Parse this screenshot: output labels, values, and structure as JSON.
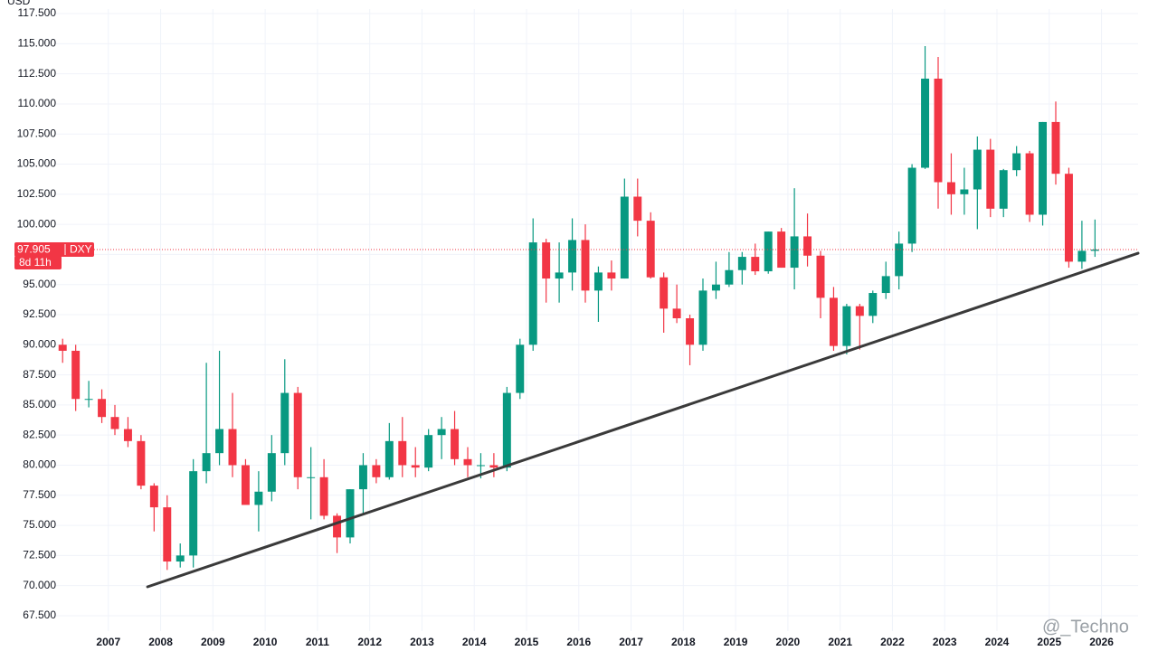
{
  "chart_data": {
    "type": "candlestick",
    "currency": "USD",
    "up_color": "#089981",
    "down_color": "#f23645",
    "grid": true,
    "xlim": [
      2006,
      2026.7
    ],
    "ylim": [
      66.22,
      117.88
    ],
    "xticks": [
      2007,
      2008,
      2009,
      2010,
      2011,
      2012,
      2013,
      2014,
      2015,
      2016,
      2017,
      2018,
      2019,
      2020,
      2021,
      2022,
      2023,
      2024,
      2025,
      2026
    ],
    "yticks": [
      {
        "value": 67.5,
        "label": "67.500"
      },
      {
        "value": 70,
        "label": "70.000"
      },
      {
        "value": 72.5,
        "label": "72.500"
      },
      {
        "value": 75,
        "label": "75.000"
      },
      {
        "value": 77.5,
        "label": "77.500"
      },
      {
        "value": 80,
        "label": "80.000"
      },
      {
        "value": 82.5,
        "label": "82.500"
      },
      {
        "value": 85,
        "label": "85.000"
      },
      {
        "value": 87.5,
        "label": "87.500"
      },
      {
        "value": 90,
        "label": "90.000"
      },
      {
        "value": 92.5,
        "label": "92.500"
      },
      {
        "value": 95,
        "label": "95.000"
      },
      {
        "value": 97.5,
        "label": "97.500"
      },
      {
        "value": 100,
        "label": "100.000"
      },
      {
        "value": 102.5,
        "label": "102.500"
      },
      {
        "value": 105,
        "label": "105.000"
      },
      {
        "value": 107.5,
        "label": "107.500"
      },
      {
        "value": 110,
        "label": "110.000"
      },
      {
        "value": 112.5,
        "label": "112.500"
      },
      {
        "value": 115,
        "label": "115.000"
      },
      {
        "value": 117.5,
        "label": "117.500"
      }
    ],
    "candles": {
      "x": [
        2006.125,
        2006.375,
        2006.625,
        2006.875,
        2007.125,
        2007.375,
        2007.625,
        2007.875,
        2008.125,
        2008.375,
        2008.625,
        2008.875,
        2009.125,
        2009.375,
        2009.625,
        2009.875,
        2010.125,
        2010.375,
        2010.625,
        2010.875,
        2011.125,
        2011.375,
        2011.625,
        2011.875,
        2012.125,
        2012.375,
        2012.625,
        2012.875,
        2013.125,
        2013.375,
        2013.625,
        2013.875,
        2014.125,
        2014.375,
        2014.625,
        2014.875,
        2015.125,
        2015.375,
        2015.625,
        2015.875,
        2016.125,
        2016.375,
        2016.625,
        2016.875,
        2017.125,
        2017.375,
        2017.625,
        2017.875,
        2018.125,
        2018.375,
        2018.625,
        2018.875,
        2019.125,
        2019.375,
        2019.625,
        2019.875,
        2020.125,
        2020.375,
        2020.625,
        2020.875,
        2021.125,
        2021.375,
        2021.625,
        2021.875,
        2022.125,
        2022.375,
        2022.625,
        2022.875,
        2023.125,
        2023.375,
        2023.625,
        2023.875,
        2024.125,
        2024.375,
        2024.625,
        2024.875,
        2025.125,
        2025.375,
        2025.625,
        2025.875
      ],
      "open": [
        90,
        89.5,
        85.5,
        85.5,
        84,
        83,
        82,
        78.3,
        76.5,
        72,
        72.5,
        79.5,
        81,
        83,
        80,
        76.7,
        77.8,
        81,
        86,
        79,
        79,
        75.8,
        74,
        78,
        80,
        79,
        82,
        80,
        79.8,
        82.5,
        83,
        80.5,
        80,
        80,
        79.8,
        86,
        90,
        98.5,
        95.5,
        96,
        98.7,
        94.5,
        96,
        95.5,
        102.3,
        100.3,
        95.6,
        93,
        92.2,
        90,
        94.5,
        95,
        96.2,
        97.3,
        96.1,
        99.4,
        96.4,
        99,
        97.4,
        93.9,
        89.9,
        93.2,
        92.4,
        94.3,
        95.7,
        98.4,
        104.7,
        112.1,
        103.5,
        102.5,
        102.9,
        106.2,
        101.3,
        104.5,
        105.9,
        100.8,
        108.5,
        104.2,
        96.9,
        97.8
      ],
      "high": [
        90.5,
        90,
        87,
        86.3,
        85,
        84,
        82.5,
        78.5,
        77.5,
        73.5,
        80.5,
        88.5,
        89.5,
        86,
        80.5,
        79.5,
        82.5,
        88.8,
        86.5,
        81.5,
        80.5,
        76,
        78,
        81,
        80.5,
        83.5,
        84,
        81.5,
        83,
        84,
        84.5,
        81.5,
        81,
        81,
        86.5,
        90.5,
        100.5,
        98.8,
        98.5,
        100.5,
        100,
        96.5,
        97,
        103.8,
        103.8,
        101,
        96,
        95,
        92.5,
        95.5,
        96.9,
        97.7,
        97.7,
        98.4,
        99.4,
        99.7,
        103,
        100.9,
        97.8,
        94.8,
        93.4,
        93.4,
        94.5,
        96.9,
        99.4,
        105,
        114.8,
        113.9,
        105.9,
        104.7,
        107.3,
        107.1,
        104.6,
        106.5,
        106.1,
        108.5,
        110.2,
        104.7,
        100.3,
        100.4
      ],
      "low": [
        88.5,
        84.5,
        84.8,
        83.5,
        82.5,
        81.5,
        78,
        74.5,
        71.3,
        71.5,
        71.5,
        78.5,
        80,
        79,
        77,
        74.5,
        77,
        80,
        78,
        75.5,
        75.5,
        72.7,
        73.5,
        76,
        78.5,
        78.8,
        79,
        79,
        79.5,
        80.5,
        80,
        79,
        78.9,
        79,
        79.5,
        85.5,
        89.5,
        93.5,
        93.5,
        94.5,
        93.5,
        91.9,
        94.5,
        95.5,
        99,
        95.5,
        91,
        91.8,
        88.3,
        89.5,
        93.8,
        94.8,
        95,
        95.8,
        95.9,
        96.4,
        94.6,
        96.5,
        92.2,
        89.5,
        89.2,
        89.6,
        91.8,
        93.8,
        94.6,
        97.7,
        104.6,
        101.3,
        100.8,
        100.8,
        99.6,
        100.6,
        100.6,
        104,
        100.2,
        99.9,
        103.3,
        96.4,
        96.3,
        97.3
      ],
      "close": [
        89.5,
        85.5,
        85.5,
        84,
        83,
        82,
        78.3,
        76.5,
        72,
        72.5,
        79.5,
        81,
        83,
        80,
        76.7,
        77.8,
        81,
        86,
        79,
        79,
        75.8,
        74,
        78,
        80,
        79,
        82,
        80,
        79.8,
        82.5,
        83,
        80.5,
        80,
        80,
        79.8,
        86,
        90,
        98.5,
        95.5,
        96,
        98.7,
        94.5,
        96,
        95.5,
        102.3,
        100.3,
        95.6,
        93,
        92.2,
        90,
        94.5,
        95,
        96.2,
        97.3,
        96.1,
        99.4,
        96.4,
        99,
        97.4,
        93.9,
        89.9,
        93.2,
        92.4,
        94.3,
        95.7,
        98.4,
        104.7,
        112.1,
        103.5,
        102.5,
        102.9,
        106.2,
        101.3,
        104.5,
        105.9,
        100.8,
        108.5,
        104.2,
        96.9,
        97.8,
        97.905
      ]
    },
    "trendline": {
      "x": [
        2007.75,
        2026.7
      ],
      "y": [
        69.9,
        97.6
      ],
      "color": "#3a3a3a"
    },
    "last_price": {
      "value": 97.905,
      "label": "97.905",
      "symbol": "DXY",
      "countdown": "8d 11h"
    },
    "watermark": "@_Techno"
  }
}
